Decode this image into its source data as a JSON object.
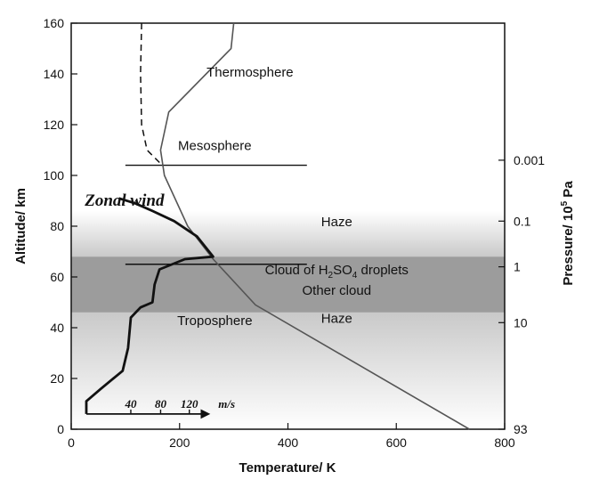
{
  "chart_data": {
    "type": "line",
    "xlabel": "Temperature/ K",
    "ylabel": "Altitude/ km",
    "y2label_main": "Pressure/ 10",
    "y2label_sup": "5",
    "y2label_unit": " Pa",
    "xlim": [
      0,
      800
    ],
    "ylim": [
      0,
      160
    ],
    "x_ticks": [
      0,
      200,
      400,
      600,
      800
    ],
    "y_ticks": [
      0,
      20,
      40,
      60,
      80,
      100,
      120,
      140,
      160
    ],
    "pressure_ticks": [
      {
        "altitude": 0,
        "label": "93"
      },
      {
        "altitude": 42,
        "label": "10"
      },
      {
        "altitude": 64,
        "label": "1"
      },
      {
        "altitude": 82,
        "label": "0.1"
      },
      {
        "altitude": 106,
        "label": "0.001"
      }
    ],
    "layers": [
      {
        "label": "Thermosphere",
        "x": 330,
        "y": 139
      },
      {
        "label": "Mesosphere",
        "x": 265,
        "y": 110
      },
      {
        "label": "Troposphere",
        "x": 265,
        "y": 41
      }
    ],
    "boundaries": [
      {
        "altitude": 104,
        "x_from": 100,
        "x_to": 435
      },
      {
        "altitude": 65,
        "x_from": 100,
        "x_to": 435
      }
    ],
    "bands": {
      "haze_upper": {
        "from": 68,
        "to": 86,
        "label": "Haze",
        "label_x": 490,
        "label_y": 80
      },
      "cloud": {
        "from": 46,
        "to": 68,
        "label_main": "Cloud of H",
        "label_sub1": "2",
        "label_mid": "SO",
        "label_sub2": "4",
        "label_end": " droplets",
        "label2": "Other cloud",
        "label_x": 490,
        "label_y": 61,
        "label2_y": 53
      },
      "haze_lower": {
        "from": 0,
        "to": 46,
        "label": "Haze",
        "label_x": 490,
        "label_y": 42
      }
    },
    "series": [
      {
        "type": "temperature",
        "style": "solid",
        "points": [
          [
            735,
            0
          ],
          [
            340,
            49
          ],
          [
            262,
            67
          ],
          [
            215,
            80
          ],
          [
            172,
            100
          ],
          [
            165,
            110
          ],
          [
            180,
            125
          ],
          [
            295,
            150
          ],
          [
            300,
            160
          ]
        ]
      },
      {
        "type": "temperature-dashed",
        "style": "dashed",
        "points": [
          [
            130,
            160
          ],
          [
            128,
            140
          ],
          [
            130,
            120
          ],
          [
            140,
            110
          ],
          [
            168,
            104
          ]
        ]
      },
      {
        "type": "zonal-wind",
        "style": "bold",
        "points": [
          [
            28,
            6
          ],
          [
            28,
            11
          ],
          [
            55,
            16
          ],
          [
            95,
            23
          ],
          [
            105,
            32
          ],
          [
            110,
            44
          ],
          [
            128,
            48
          ],
          [
            150,
            50
          ],
          [
            154,
            57
          ],
          [
            163,
            63
          ],
          [
            210,
            67
          ],
          [
            262,
            68
          ],
          [
            232,
            76
          ],
          [
            190,
            82
          ],
          [
            150,
            86
          ],
          [
            118,
            89
          ],
          [
            88,
            91
          ]
        ]
      }
    ],
    "zonal_wind": {
      "title": "Zonal wind",
      "title_x": 25,
      "title_y": 88,
      "axis_altitude": 6,
      "axis_x_from": 28,
      "axis_x_to": 130,
      "tick_labels": [
        "40",
        "80",
        "120",
        "m/s"
      ],
      "tick_positions": [
        110,
        165,
        218
      ]
    }
  }
}
